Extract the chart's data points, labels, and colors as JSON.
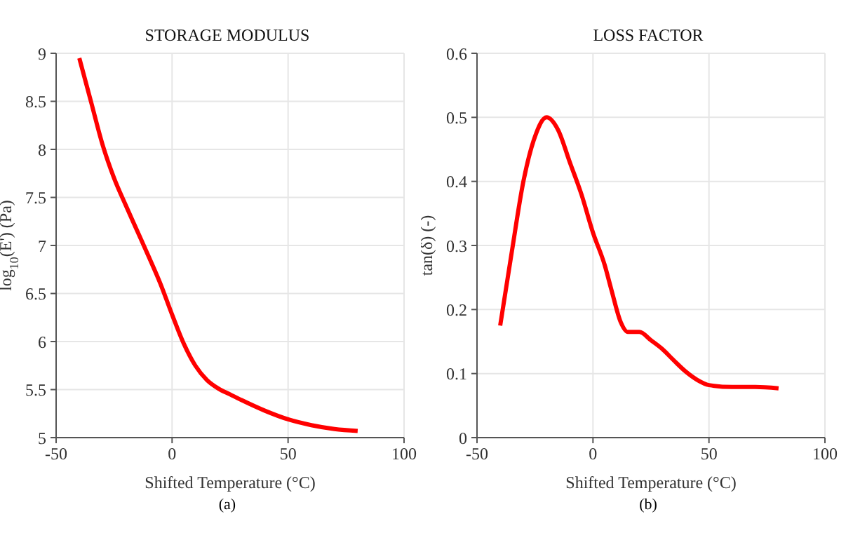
{
  "chart_data": [
    {
      "type": "line",
      "title": "STORAGE MODULUS",
      "xlabel": "Shifted Temperature (°C)",
      "ylabel": "log$_{10}$(E') (Pa)",
      "annotations": [
        "(a)"
      ],
      "x": [
        -40,
        -35,
        -30,
        -25,
        -20,
        -15,
        -10,
        -5,
        0,
        5,
        10,
        15,
        20,
        25,
        30,
        40,
        50,
        60,
        70,
        80
      ],
      "series": [
        {
          "color": "#ff0000",
          "values": [
            8.95,
            8.5,
            8.05,
            7.7,
            7.42,
            7.15,
            6.88,
            6.6,
            6.28,
            5.98,
            5.75,
            5.6,
            5.51,
            5.45,
            5.39,
            5.28,
            5.19,
            5.13,
            5.09,
            5.07
          ]
        }
      ],
      "xlim": [
        -50,
        100
      ],
      "xticks": [
        -50,
        0,
        50,
        100
      ],
      "ylim": [
        5,
        9
      ],
      "yticks": [
        5,
        5.5,
        6,
        6.5,
        7,
        7.5,
        8,
        8.5,
        9
      ],
      "grid": true,
      "marker": "none",
      "line_style": "solid"
    },
    {
      "type": "line",
      "title": "LOSS FACTOR",
      "xlabel": "Shifted Temperature (°C)",
      "ylabel": "tan(δ) (-)",
      "annotations": [
        "(b)"
      ],
      "x": [
        -40,
        -35,
        -30,
        -25,
        -20,
        -15,
        -10,
        -5,
        0,
        5,
        8,
        12,
        15,
        20,
        25,
        30,
        35,
        40,
        45,
        50,
        60,
        70,
        80
      ],
      "series": [
        {
          "color": "#ff0000",
          "values": [
            0.175,
            0.29,
            0.4,
            0.47,
            0.5,
            0.48,
            0.43,
            0.38,
            0.32,
            0.27,
            0.23,
            0.18,
            0.165,
            0.165,
            0.152,
            0.138,
            0.12,
            0.103,
            0.09,
            0.082,
            0.079,
            0.079,
            0.077
          ]
        }
      ],
      "xlim": [
        -50,
        100
      ],
      "xticks": [
        -50,
        0,
        50,
        100
      ],
      "ylim": [
        0,
        0.6
      ],
      "yticks": [
        0,
        0.1,
        0.2,
        0.3,
        0.4,
        0.5,
        0.6
      ],
      "grid": true,
      "marker": "none",
      "line_style": "solid"
    }
  ]
}
